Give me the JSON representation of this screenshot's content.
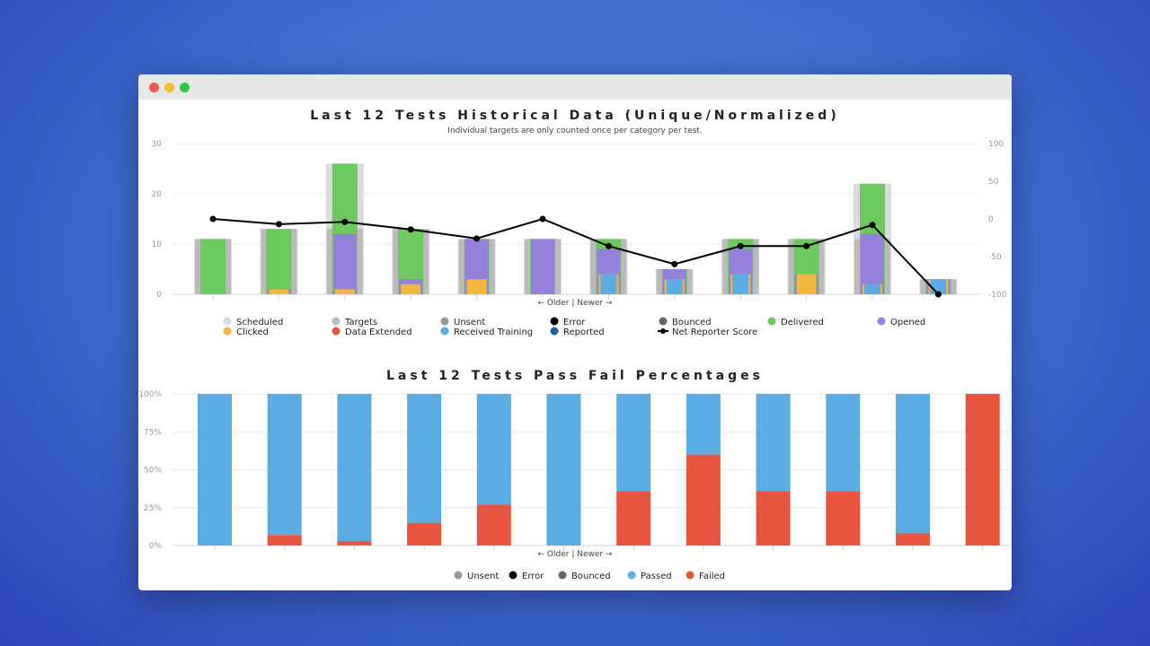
{
  "window": {
    "controls": [
      {
        "name": "close",
        "color": "#ee5a52"
      },
      {
        "name": "minimize",
        "color": "#f5bd2e"
      },
      {
        "name": "maximize",
        "color": "#2ec944"
      }
    ]
  },
  "chart_data": [
    {
      "type": "bar",
      "title": "Last 12 Tests Historical Data (Unique/Normalized)",
      "subtitle": "Individual targets are only counted once per category per test.",
      "xlabel": "← Older | Newer →",
      "ylim": [
        0,
        30
      ],
      "yticks": [
        0,
        10,
        20,
        30
      ],
      "y2lim": [
        -100,
        100
      ],
      "y2ticks": [
        -100,
        -50,
        0,
        50,
        100
      ],
      "grid": true,
      "legend_placement": "bottom",
      "series": [
        {
          "name": "Scheduled",
          "color": "#dcdcdc",
          "values": [
            11,
            13,
            26,
            13,
            11,
            11,
            11,
            5,
            11,
            11,
            22,
            3
          ]
        },
        {
          "name": "Targets",
          "color": "#bbbbbb",
          "values": [
            11,
            13,
            13,
            13,
            11,
            11,
            11,
            5,
            11,
            11,
            11,
            3
          ]
        },
        {
          "name": "Unsent",
          "color": "#999999",
          "values": [
            0,
            0,
            0,
            0,
            0,
            0,
            0,
            0,
            0,
            0,
            0,
            0
          ]
        },
        {
          "name": "Error",
          "color": "#000000",
          "values": [
            0,
            0,
            0,
            0,
            0,
            0,
            0,
            0,
            0,
            0,
            0,
            0
          ]
        },
        {
          "name": "Bounced",
          "color": "#666666",
          "values": [
            0,
            0,
            0,
            0,
            0,
            0,
            0,
            0,
            0,
            0,
            0,
            0
          ]
        },
        {
          "name": "Delivered",
          "color": "#6cc95f",
          "values": [
            11,
            13,
            26,
            13,
            11,
            11,
            11,
            5,
            11,
            11,
            22,
            3
          ]
        },
        {
          "name": "Opened",
          "color": "#9580db",
          "values": [
            0,
            1,
            12,
            3,
            11,
            11,
            9,
            5,
            9,
            4,
            12,
            3
          ]
        },
        {
          "name": "Clicked",
          "color": "#f5b83d",
          "values": [
            0,
            1,
            1,
            2,
            3,
            0,
            4,
            3,
            4,
            4,
            2,
            3
          ]
        },
        {
          "name": "Data Extended",
          "color": "#e8553e",
          "values": [
            0,
            0,
            0,
            0,
            0,
            0,
            0,
            0,
            0,
            0,
            1,
            0
          ]
        },
        {
          "name": "Received Training",
          "color": "#5aace2",
          "values": [
            0,
            0,
            0,
            0,
            0,
            0,
            4,
            3,
            4,
            0,
            2,
            3
          ]
        },
        {
          "name": "Reported",
          "color": "#1f5fa8",
          "values": [
            0,
            0,
            0,
            0,
            0,
            0,
            0,
            0,
            0,
            0,
            0,
            0
          ]
        },
        {
          "name": "Net Reporter Score",
          "color": "#000000",
          "type": "line",
          "axis": "right",
          "values": [
            0,
            -7,
            -4,
            -14,
            -26,
            0,
            -36,
            -60,
            -36,
            -36,
            -8,
            -100
          ]
        }
      ]
    },
    {
      "type": "bar",
      "stacked": true,
      "title": "Last 12 Tests Pass Fail Percentages",
      "xlabel": "← Older | Newer →",
      "ylim": [
        0,
        100
      ],
      "yticks": [
        "0%",
        "25%",
        "50%",
        "75%",
        "100%"
      ],
      "grid": true,
      "legend_placement": "bottom",
      "legend": [
        {
          "name": "Unsent",
          "color": "#999999"
        },
        {
          "name": "Error",
          "color": "#000000"
        },
        {
          "name": "Bounced",
          "color": "#666666"
        },
        {
          "name": "Passed",
          "color": "#5aace2"
        },
        {
          "name": "Failed",
          "color": "#e8553e"
        }
      ],
      "series": [
        {
          "name": "Failed",
          "color": "#e8553e",
          "values": [
            0,
            7,
            3,
            15,
            27,
            0,
            36,
            60,
            36,
            36,
            8,
            100
          ]
        },
        {
          "name": "Passed",
          "color": "#5aace2",
          "values": [
            100,
            93,
            97,
            85,
            73,
            100,
            64,
            40,
            64,
            64,
            92,
            0
          ]
        }
      ]
    }
  ]
}
